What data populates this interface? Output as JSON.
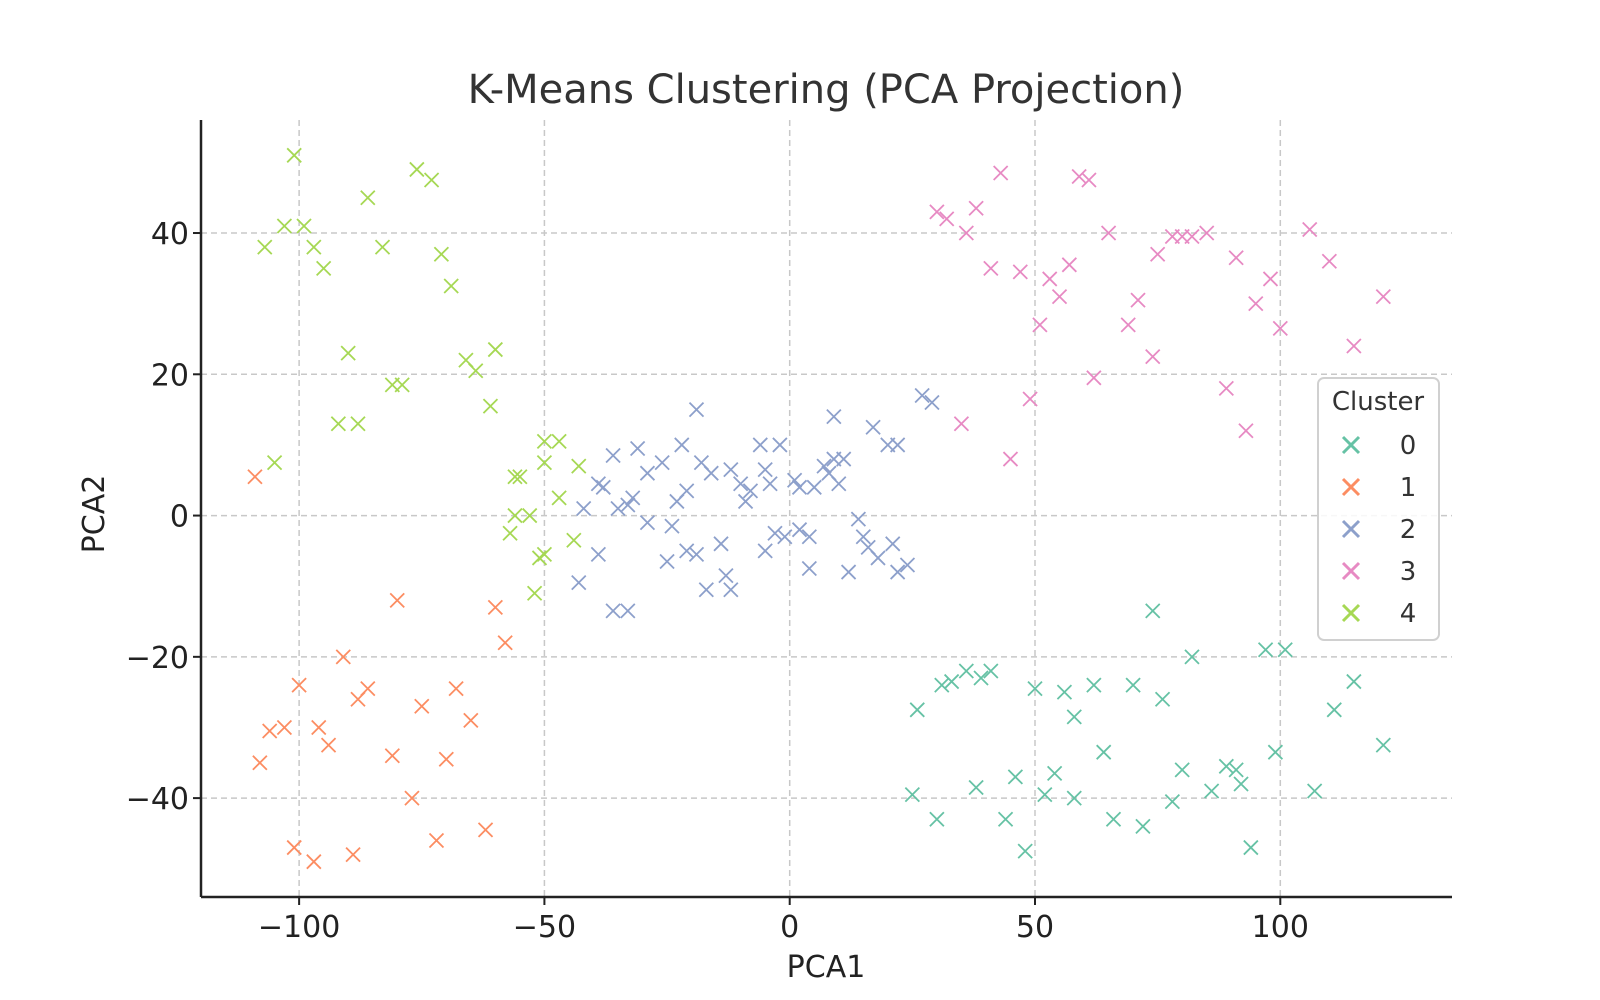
{
  "chart_data": {
    "type": "scatter",
    "title": "K-Means Clustering (PCA Projection)",
    "xlabel": "PCA1",
    "ylabel": "PCA2",
    "xlim": [
      -120,
      135
    ],
    "ylim": [
      -54,
      56
    ],
    "xticks": [
      -100,
      -50,
      0,
      50,
      100
    ],
    "yticks": [
      -40,
      -20,
      0,
      20,
      40
    ],
    "xtick_labels": [
      "−100",
      "−50",
      "0",
      "50",
      "100"
    ],
    "ytick_labels": [
      "−40",
      "−20",
      "0",
      "20",
      "40"
    ],
    "grid": true,
    "marker": "x",
    "legend": {
      "title": "Cluster",
      "position": "right"
    },
    "series": [
      {
        "name": "0",
        "color": "#66c2a5",
        "points": [
          [
            74,
            -13.5
          ],
          [
            97,
            -19
          ],
          [
            101,
            -19
          ],
          [
            82,
            -20
          ],
          [
            115,
            -23.5
          ],
          [
            26,
            -27.5
          ],
          [
            31,
            -24
          ],
          [
            33,
            -23.5
          ],
          [
            36,
            -22
          ],
          [
            39,
            -23
          ],
          [
            41,
            -22
          ],
          [
            50,
            -24.5
          ],
          [
            56,
            -25
          ],
          [
            58,
            -28.5
          ],
          [
            62,
            -24
          ],
          [
            64,
            -33.5
          ],
          [
            70,
            -24
          ],
          [
            76,
            -26
          ],
          [
            80,
            -36
          ],
          [
            91,
            -36
          ],
          [
            92,
            -38
          ],
          [
            99,
            -33.5
          ],
          [
            111,
            -27.5
          ],
          [
            121,
            -32.5
          ],
          [
            25,
            -39.5
          ],
          [
            30,
            -43
          ],
          [
            38,
            -38.5
          ],
          [
            44,
            -43
          ],
          [
            46,
            -37
          ],
          [
            48,
            -47.5
          ],
          [
            52,
            -39.5
          ],
          [
            54,
            -36.5
          ],
          [
            58,
            -40
          ],
          [
            66,
            -43
          ],
          [
            72,
            -44
          ],
          [
            78,
            -40.5
          ],
          [
            86,
            -39
          ],
          [
            94,
            -47
          ],
          [
            107,
            -39
          ],
          [
            89,
            -35.5
          ]
        ]
      },
      {
        "name": "1",
        "color": "#fc8d62",
        "points": [
          [
            -109,
            5.5
          ],
          [
            -80,
            -12
          ],
          [
            -60,
            -13
          ],
          [
            -58,
            -18
          ],
          [
            -91,
            -20
          ],
          [
            -100,
            -24
          ],
          [
            -86,
            -24.5
          ],
          [
            -68,
            -24.5
          ],
          [
            -88,
            -26
          ],
          [
            -75,
            -27
          ],
          [
            -65,
            -29
          ],
          [
            -103,
            -30
          ],
          [
            -106,
            -30.5
          ],
          [
            -96,
            -30
          ],
          [
            -94,
            -32.5
          ],
          [
            -108,
            -35
          ],
          [
            -81,
            -34
          ],
          [
            -70,
            -34.5
          ],
          [
            -77,
            -40
          ],
          [
            -101,
            -47
          ],
          [
            -97,
            -49
          ],
          [
            -89,
            -48
          ],
          [
            -72,
            -46
          ],
          [
            -62,
            -44.5
          ]
        ]
      },
      {
        "name": "2",
        "color": "#8da0cb",
        "points": [
          [
            -19,
            15
          ],
          [
            -36,
            8.5
          ],
          [
            -31,
            9.5
          ],
          [
            -22,
            10
          ],
          [
            -26,
            7.5
          ],
          [
            -29,
            6
          ],
          [
            -39,
            4.5
          ],
          [
            -42,
            1
          ],
          [
            -38,
            4
          ],
          [
            -35,
            1
          ],
          [
            -33,
            1.5
          ],
          [
            -32,
            2.5
          ],
          [
            -29,
            -1
          ],
          [
            -24,
            -1.5
          ],
          [
            -23,
            2
          ],
          [
            -21,
            3.5
          ],
          [
            -18,
            7.5
          ],
          [
            -16,
            6
          ],
          [
            -12,
            6.5
          ],
          [
            -10,
            4.5
          ],
          [
            -8,
            3.5
          ],
          [
            -9,
            2
          ],
          [
            -6,
            10
          ],
          [
            -5,
            6.5
          ],
          [
            -4,
            4.5
          ],
          [
            -2,
            10
          ],
          [
            1,
            5
          ],
          [
            2,
            4
          ],
          [
            5,
            4
          ],
          [
            7,
            7
          ],
          [
            8,
            6
          ],
          [
            9,
            8
          ],
          [
            10,
            4.5
          ],
          [
            11,
            8
          ],
          [
            9,
            14
          ],
          [
            17,
            12.5
          ],
          [
            20,
            10
          ],
          [
            22,
            10
          ],
          [
            27,
            17
          ],
          [
            29,
            16
          ],
          [
            -43,
            -9.5
          ],
          [
            -39,
            -5.5
          ],
          [
            -36,
            -13.5
          ],
          [
            -33,
            -13.5
          ],
          [
            -25,
            -6.5
          ],
          [
            -21,
            -5
          ],
          [
            -19,
            -5.5
          ],
          [
            -17,
            -10.5
          ],
          [
            -14,
            -4
          ],
          [
            -13,
            -8.5
          ],
          [
            -12,
            -10.5
          ],
          [
            -5,
            -5
          ],
          [
            -3,
            -2.5
          ],
          [
            -1,
            -3
          ],
          [
            2,
            -2
          ],
          [
            4,
            -3
          ],
          [
            4,
            -7.5
          ],
          [
            12,
            -8
          ],
          [
            14,
            -0.5
          ],
          [
            15,
            -3
          ],
          [
            16,
            -4.5
          ],
          [
            18,
            -6
          ],
          [
            21,
            -4
          ],
          [
            22,
            -8
          ],
          [
            24,
            -7
          ]
        ]
      },
      {
        "name": "3",
        "color": "#e78ac3",
        "points": [
          [
            43,
            48.5
          ],
          [
            59,
            48
          ],
          [
            61,
            47.5
          ],
          [
            30,
            43
          ],
          [
            32,
            42
          ],
          [
            38,
            43.5
          ],
          [
            36,
            40
          ],
          [
            41,
            35
          ],
          [
            47,
            34.5
          ],
          [
            53,
            33.5
          ],
          [
            55,
            31
          ],
          [
            57,
            35.5
          ],
          [
            51,
            27
          ],
          [
            65,
            40
          ],
          [
            69,
            27
          ],
          [
            71,
            30.5
          ],
          [
            74,
            22.5
          ],
          [
            75,
            37
          ],
          [
            78,
            39.5
          ],
          [
            80,
            39.5
          ],
          [
            82,
            39.5
          ],
          [
            85,
            40
          ],
          [
            91,
            36.5
          ],
          [
            95,
            30
          ],
          [
            98,
            33.5
          ],
          [
            100,
            26.5
          ],
          [
            106,
            40.5
          ],
          [
            110,
            36
          ],
          [
            115,
            24
          ],
          [
            121,
            31
          ],
          [
            35,
            13
          ],
          [
            45,
            8
          ],
          [
            49,
            16.5
          ],
          [
            62,
            19.5
          ],
          [
            89,
            18
          ],
          [
            93,
            12
          ]
        ]
      },
      {
        "name": "4",
        "color": "#a6d854",
        "points": [
          [
            -101,
            51
          ],
          [
            -76,
            49
          ],
          [
            -73,
            47.5
          ],
          [
            -107,
            38
          ],
          [
            -103,
            41
          ],
          [
            -99,
            41
          ],
          [
            -97,
            38
          ],
          [
            -95,
            35
          ],
          [
            -86,
            45
          ],
          [
            -83,
            38
          ],
          [
            -71,
            37
          ],
          [
            -69,
            32.5
          ],
          [
            -90,
            23
          ],
          [
            -66,
            22
          ],
          [
            -64,
            20.5
          ],
          [
            -60,
            23.5
          ],
          [
            -79,
            18.5
          ],
          [
            -81,
            18.5
          ],
          [
            -92,
            13
          ],
          [
            -88,
            13
          ],
          [
            -61,
            15.5
          ],
          [
            -105,
            7.5
          ],
          [
            -55,
            5.5
          ],
          [
            -56,
            5.5
          ],
          [
            -50,
            10.5
          ],
          [
            -47,
            10.5
          ],
          [
            -50,
            7.5
          ],
          [
            -43,
            7
          ],
          [
            -47,
            2.5
          ],
          [
            -56,
            0
          ],
          [
            -53,
            0
          ],
          [
            -57,
            -2.5
          ],
          [
            -44,
            -3.5
          ],
          [
            -50,
            -5.5
          ],
          [
            -51,
            -6
          ],
          [
            -52,
            -11
          ]
        ]
      }
    ]
  }
}
